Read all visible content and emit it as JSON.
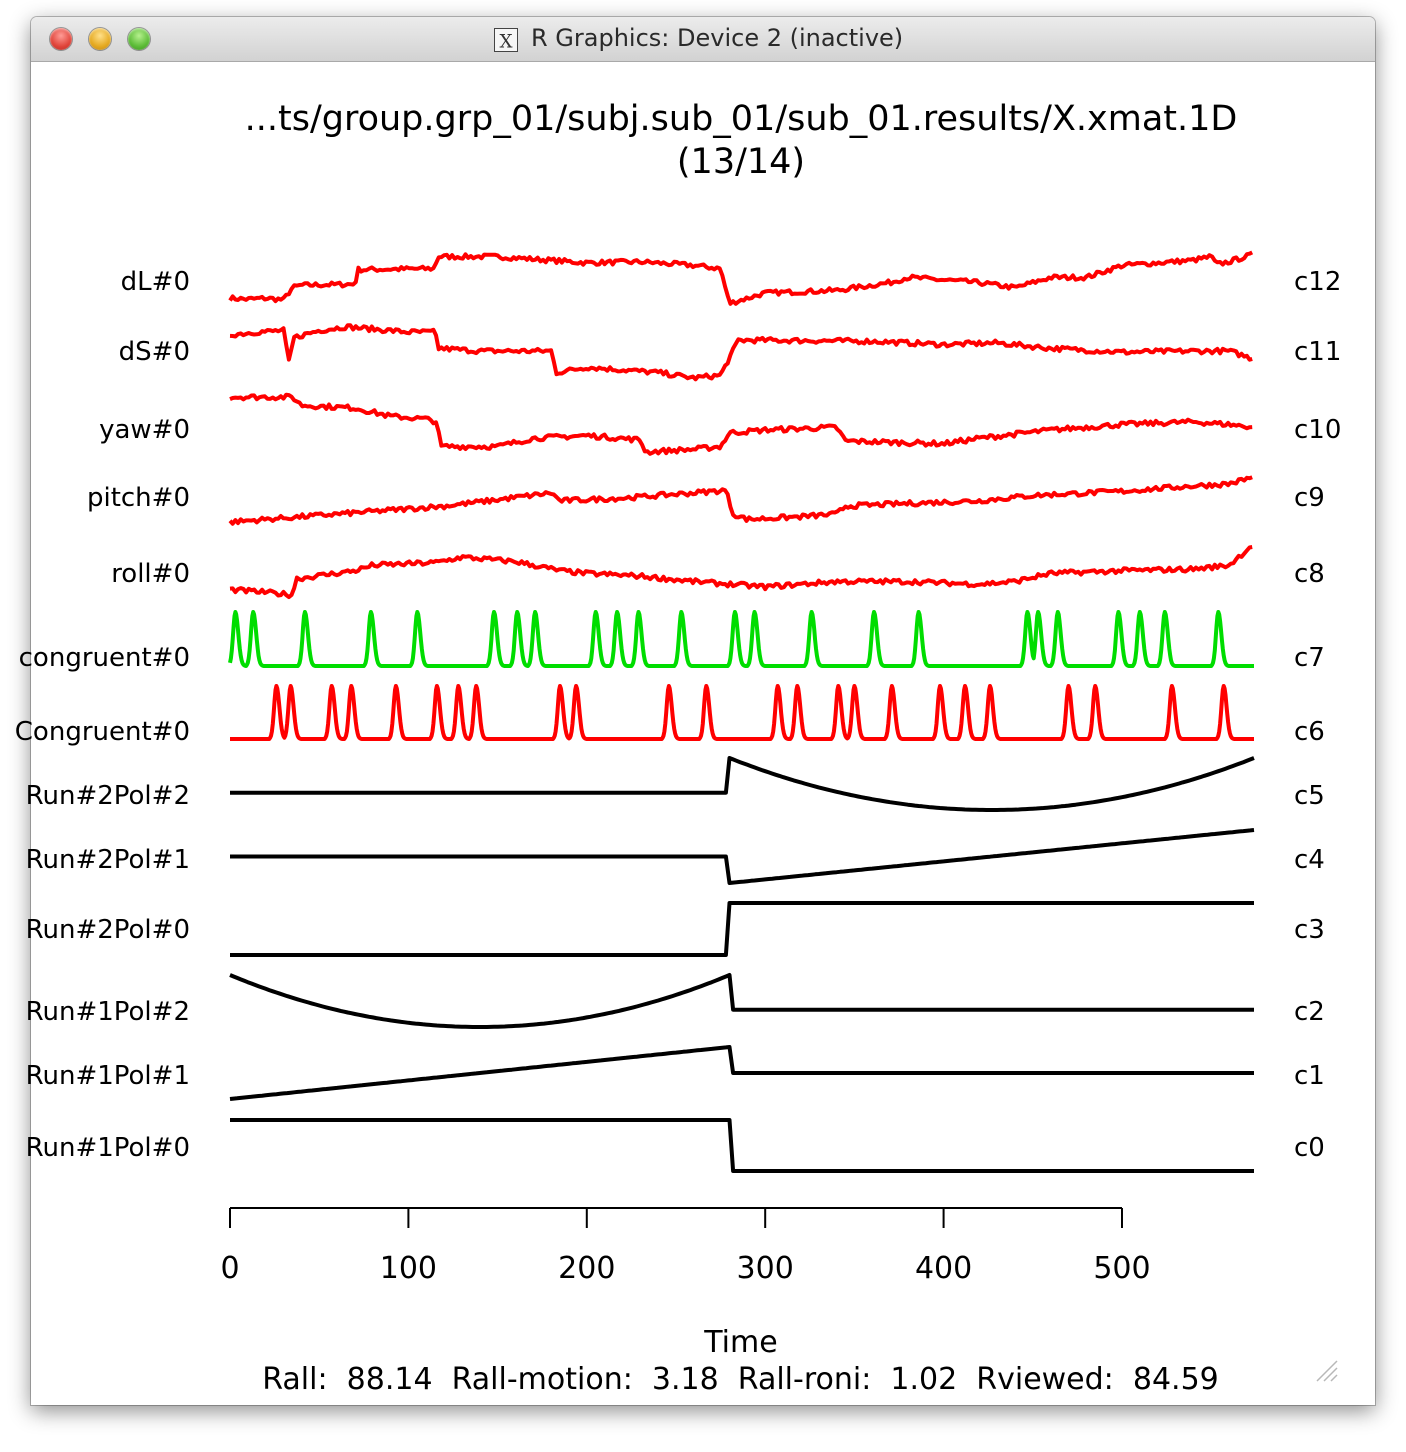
{
  "window": {
    "title": "R Graphics: Device 2 (inactive)",
    "x_icon_glyph": "X"
  },
  "plot": {
    "title_line1": "...ts/group.grp_01/subj.sub_01/sub_01.results/X.xmat.1D",
    "title_line2": "(13/14)"
  },
  "footer": {
    "stats": "Rall:  88.14  Rall-motion:  3.18  Rall-roni:  1.02  Rviewed:  84.59"
  },
  "chart_data": {
    "type": "line",
    "xlabel": "Time",
    "ylabel": "",
    "xlim": [
      0,
      574
    ],
    "xticks": [
      0,
      100,
      200,
      300,
      400,
      500
    ],
    "grid": false,
    "run_break": 280,
    "regressors": [
      {
        "label": "dL#0",
        "right": "c12",
        "color": "#ff0000",
        "kind": "motion",
        "values": [
          [
            0,
            0.15
          ],
          [
            10,
            0.13
          ],
          [
            20,
            0.15
          ],
          [
            30,
            0.12
          ],
          [
            35,
            0.35
          ],
          [
            40,
            0.4
          ],
          [
            70,
            0.42
          ],
          [
            72,
            0.7
          ],
          [
            115,
            0.72
          ],
          [
            116,
            0.95
          ],
          [
            150,
            0.95
          ],
          [
            200,
            0.83
          ],
          [
            230,
            0.85
          ],
          [
            260,
            0.78
          ],
          [
            275,
            0.72
          ],
          [
            278,
            0.3
          ],
          [
            280,
            0.05
          ],
          [
            300,
            0.25
          ],
          [
            340,
            0.3
          ],
          [
            370,
            0.45
          ],
          [
            380,
            0.55
          ],
          [
            420,
            0.45
          ],
          [
            440,
            0.35
          ],
          [
            460,
            0.55
          ],
          [
            480,
            0.55
          ],
          [
            500,
            0.78
          ],
          [
            540,
            0.88
          ],
          [
            550,
            0.95
          ],
          [
            553,
            0.8
          ],
          [
            560,
            0.85
          ],
          [
            574,
            1.0
          ]
        ]
      },
      {
        "label": "dS#0",
        "right": "c11",
        "color": "#ff0000",
        "kind": "motion",
        "values": [
          [
            0,
            0.8
          ],
          [
            15,
            0.85
          ],
          [
            30,
            0.88
          ],
          [
            33,
            0.3
          ],
          [
            36,
            0.75
          ],
          [
            50,
            0.88
          ],
          [
            65,
            0.95
          ],
          [
            100,
            0.85
          ],
          [
            115,
            0.85
          ],
          [
            117,
            0.55
          ],
          [
            140,
            0.5
          ],
          [
            180,
            0.5
          ],
          [
            183,
            0.1
          ],
          [
            200,
            0.2
          ],
          [
            240,
            0.1
          ],
          [
            260,
            0.0
          ],
          [
            275,
            0.05
          ],
          [
            285,
            0.7
          ],
          [
            300,
            0.7
          ],
          [
            360,
            0.68
          ],
          [
            400,
            0.62
          ],
          [
            430,
            0.65
          ],
          [
            460,
            0.55
          ],
          [
            500,
            0.48
          ],
          [
            540,
            0.5
          ],
          [
            560,
            0.5
          ],
          [
            574,
            0.35
          ]
        ]
      },
      {
        "label": "yaw#0",
        "right": "c10",
        "color": "#ff0000",
        "kind": "motion",
        "values": [
          [
            0,
            1.0
          ],
          [
            20,
            1.0
          ],
          [
            35,
            1.0
          ],
          [
            40,
            0.85
          ],
          [
            70,
            0.8
          ],
          [
            90,
            0.65
          ],
          [
            110,
            0.6
          ],
          [
            116,
            0.55
          ],
          [
            118,
            0.1
          ],
          [
            150,
            0.1
          ],
          [
            170,
            0.25
          ],
          [
            200,
            0.3
          ],
          [
            230,
            0.22
          ],
          [
            233,
            0.0
          ],
          [
            260,
            0.05
          ],
          [
            275,
            0.1
          ],
          [
            280,
            0.35
          ],
          [
            300,
            0.4
          ],
          [
            340,
            0.45
          ],
          [
            345,
            0.2
          ],
          [
            400,
            0.15
          ],
          [
            420,
            0.25
          ],
          [
            460,
            0.4
          ],
          [
            500,
            0.5
          ],
          [
            540,
            0.55
          ],
          [
            560,
            0.5
          ],
          [
            574,
            0.45
          ]
        ]
      },
      {
        "label": "pitch#0",
        "right": "c9",
        "color": "#ff0000",
        "kind": "motion",
        "values": [
          [
            0,
            0.0
          ],
          [
            40,
            0.1
          ],
          [
            80,
            0.2
          ],
          [
            120,
            0.3
          ],
          [
            150,
            0.42
          ],
          [
            180,
            0.55
          ],
          [
            185,
            0.4
          ],
          [
            220,
            0.45
          ],
          [
            260,
            0.55
          ],
          [
            278,
            0.6
          ],
          [
            282,
            0.15
          ],
          [
            290,
            0.05
          ],
          [
            320,
            0.1
          ],
          [
            340,
            0.15
          ],
          [
            345,
            0.3
          ],
          [
            380,
            0.35
          ],
          [
            420,
            0.4
          ],
          [
            450,
            0.5
          ],
          [
            500,
            0.58
          ],
          [
            540,
            0.68
          ],
          [
            560,
            0.72
          ],
          [
            574,
            0.85
          ]
        ]
      },
      {
        "label": "roll#0",
        "right": "c8",
        "color": "#ff0000",
        "kind": "motion",
        "values": [
          [
            0,
            0.1
          ],
          [
            20,
            0.05
          ],
          [
            35,
            0.0
          ],
          [
            37,
            0.3
          ],
          [
            70,
            0.45
          ],
          [
            80,
            0.55
          ],
          [
            115,
            0.6
          ],
          [
            130,
            0.7
          ],
          [
            160,
            0.62
          ],
          [
            185,
            0.45
          ],
          [
            200,
            0.4
          ],
          [
            230,
            0.35
          ],
          [
            260,
            0.25
          ],
          [
            280,
            0.2
          ],
          [
            300,
            0.15
          ],
          [
            340,
            0.25
          ],
          [
            380,
            0.25
          ],
          [
            420,
            0.2
          ],
          [
            440,
            0.25
          ],
          [
            460,
            0.4
          ],
          [
            500,
            0.45
          ],
          [
            540,
            0.48
          ],
          [
            560,
            0.55
          ],
          [
            574,
            0.95
          ]
        ]
      },
      {
        "label": "congruent#0",
        "right": "c7",
        "color": "#00dd00",
        "kind": "stim",
        "onsets": [
          3,
          13,
          42,
          79,
          105,
          148,
          161,
          171,
          205,
          217,
          229,
          253,
          283,
          294,
          326,
          361,
          386,
          447,
          453,
          464,
          498,
          510,
          524,
          554
        ]
      },
      {
        "label": "Congruent#0",
        "right": "c6",
        "color": "#ff0000",
        "kind": "stim",
        "onsets": [
          26,
          34,
          57,
          68,
          93,
          116,
          128,
          138,
          185,
          194,
          246,
          267,
          307,
          318,
          341,
          350,
          371,
          398,
          412,
          426,
          470,
          485,
          528,
          557
        ]
      },
      {
        "label": "Run#2Pol#2",
        "right": "c5",
        "color": "#000000",
        "kind": "baseline",
        "run": 2,
        "order": 2
      },
      {
        "label": "Run#2Pol#1",
        "right": "c4",
        "color": "#000000",
        "kind": "baseline",
        "run": 2,
        "order": 1
      },
      {
        "label": "Run#2Pol#0",
        "right": "c3",
        "color": "#000000",
        "kind": "baseline",
        "run": 2,
        "order": 0
      },
      {
        "label": "Run#1Pol#2",
        "right": "c2",
        "color": "#000000",
        "kind": "baseline",
        "run": 1,
        "order": 2
      },
      {
        "label": "Run#1Pol#1",
        "right": "c1",
        "color": "#000000",
        "kind": "baseline",
        "run": 1,
        "order": 1
      },
      {
        "label": "Run#1Pol#0",
        "right": "c0",
        "color": "#000000",
        "kind": "baseline",
        "run": 1,
        "order": 0
      }
    ]
  }
}
